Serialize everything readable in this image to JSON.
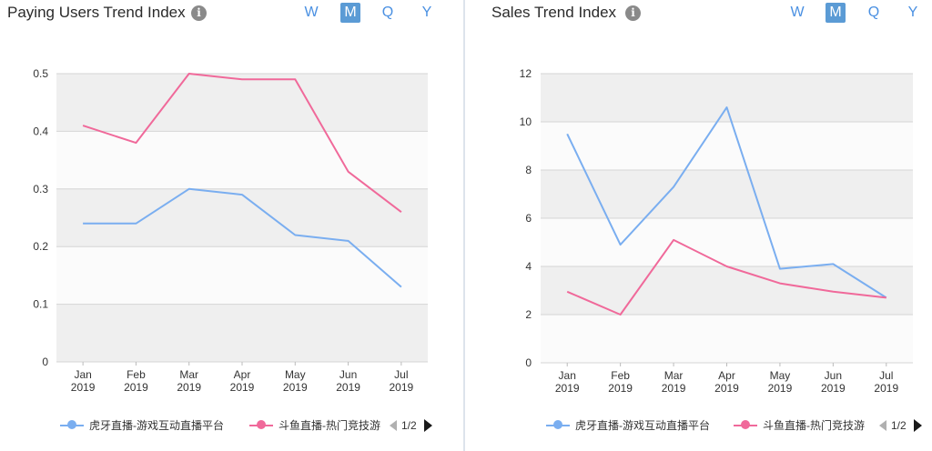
{
  "periods": [
    "W",
    "M",
    "Q",
    "Y"
  ],
  "active_period": "M",
  "colors": {
    "blue": "#7aaef0",
    "pink": "#f0699a",
    "band": "#efefef",
    "grid": "#d6d6d6"
  },
  "chart_data": [
    {
      "type": "line",
      "title": "Paying Users Trend Index",
      "x": [
        "Jan 2019",
        "Feb 2019",
        "Mar 2019",
        "Apr 2019",
        "May 2019",
        "Jun 2019",
        "Jul 2019"
      ],
      "x_ticks": [
        [
          "Jan",
          "2019"
        ],
        [
          "Feb",
          "2019"
        ],
        [
          "Mar",
          "2019"
        ],
        [
          "Apr",
          "2019"
        ],
        [
          "May",
          "2019"
        ],
        [
          "Jun",
          "2019"
        ],
        [
          "Jul",
          "2019"
        ]
      ],
      "y_ticks": [
        "0",
        "0.1",
        "0.2",
        "0.3",
        "0.4",
        "0.5"
      ],
      "ylim": [
        0,
        0.5
      ],
      "series": [
        {
          "name": "虎牙直播-游戏互动直播平台",
          "color": "#7aaef0",
          "values": [
            0.24,
            0.24,
            0.3,
            0.29,
            0.22,
            0.21,
            0.13
          ]
        },
        {
          "name": "斗鱼直播-热门竞技游",
          "color": "#f0699a",
          "values": [
            0.41,
            0.38,
            0.5,
            0.49,
            0.49,
            0.33,
            0.26
          ]
        }
      ],
      "legend": {
        "placement": "bottom",
        "page": "1/2"
      },
      "grid": true
    },
    {
      "type": "line",
      "title": "Sales Trend Index",
      "x": [
        "Jan 2019",
        "Feb 2019",
        "Mar 2019",
        "Apr 2019",
        "May 2019",
        "Jun 2019",
        "Jul 2019"
      ],
      "x_ticks": [
        [
          "Jan",
          "2019"
        ],
        [
          "Feb",
          "2019"
        ],
        [
          "Mar",
          "2019"
        ],
        [
          "Apr",
          "2019"
        ],
        [
          "May",
          "2019"
        ],
        [
          "Jun",
          "2019"
        ],
        [
          "Jul",
          "2019"
        ]
      ],
      "y_ticks": [
        "0",
        "2",
        "4",
        "6",
        "8",
        "10",
        "12"
      ],
      "ylim": [
        0,
        12
      ],
      "series": [
        {
          "name": "虎牙直播-游戏互动直播平台",
          "color": "#7aaef0",
          "values": [
            9.5,
            4.9,
            7.3,
            10.6,
            3.9,
            4.1,
            2.7
          ]
        },
        {
          "name": "斗鱼直播-热门竞技游",
          "color": "#f0699a",
          "values": [
            2.95,
            2.0,
            5.1,
            4.0,
            3.3,
            2.95,
            2.7
          ]
        }
      ],
      "legend": {
        "placement": "bottom",
        "page": "1/2"
      },
      "grid": true
    }
  ]
}
